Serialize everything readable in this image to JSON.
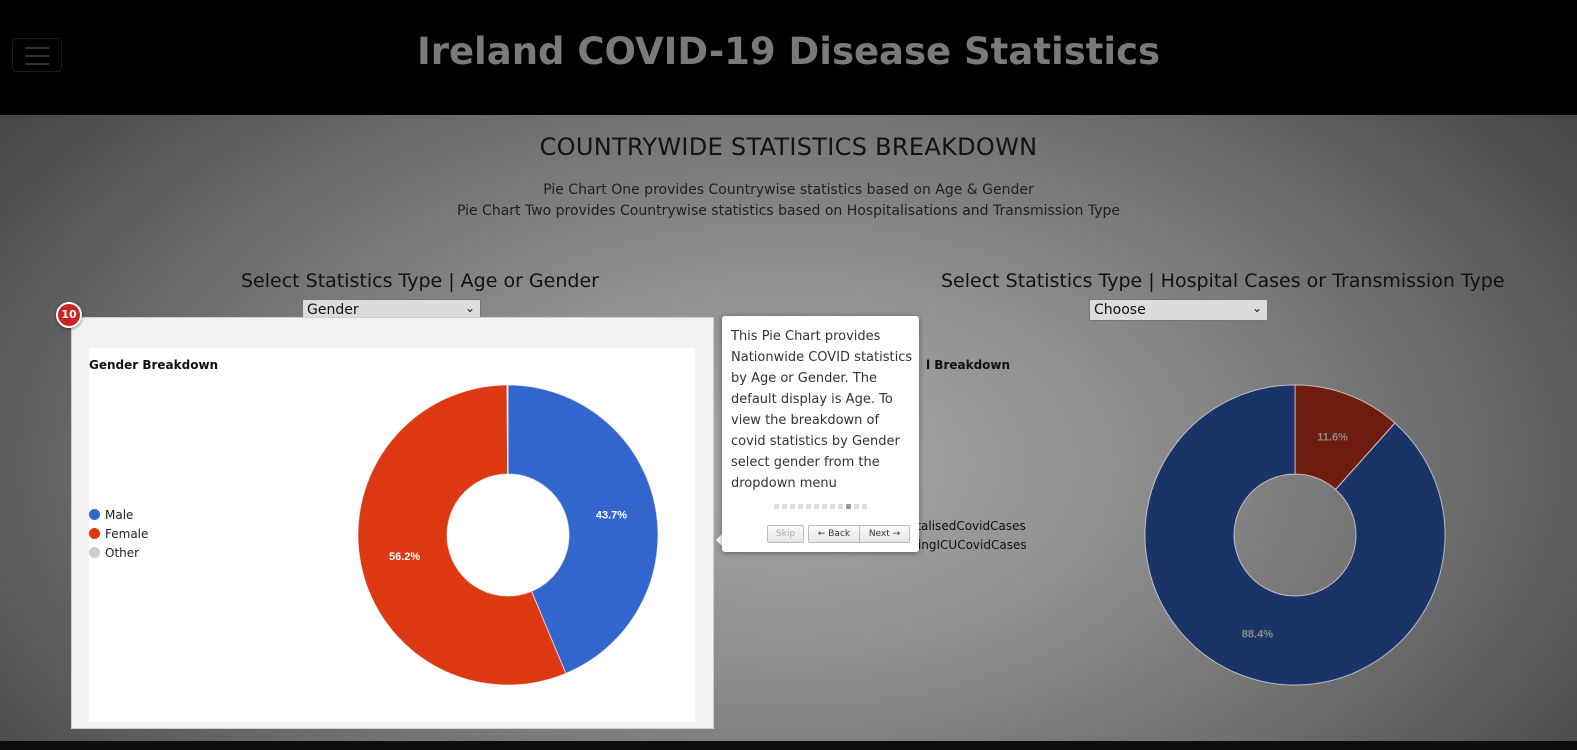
{
  "header": {
    "title": "Ireland COVID-19 Disease Statistics"
  },
  "section": {
    "title": "COUNTRYWIDE STATISTICS BREAKDOWN",
    "description_1": "Pie Chart One provides Countrywise statistics based on Age & Gender",
    "description_2": "Pie Chart Two provides Countrywise statistics based on Hospitalisations and Transmission Type"
  },
  "left_panel": {
    "select_label": "Select Statistics Type | Age or Gender",
    "select_value": "Gender"
  },
  "right_panel": {
    "select_label": "Select Statistics Type | Hospital Cases or Transmission Type",
    "select_value": "Choose",
    "chart_title_fragment": "l Breakdown",
    "legend_fragment_1": "italisedCovidCases",
    "legend_fragment_2": "ringICUCovidCases"
  },
  "tour": {
    "step_number": "10",
    "text": "This Pie Chart provides Nationwide COVID statistics by Age or Gender. The default display is Age. To view the breakdown of covid statistics by Gender select gender from the dropdown menu",
    "total_steps": 12,
    "current_step": 10,
    "skip_label": "Skip",
    "back_label": "← Back",
    "next_label": "Next →"
  },
  "chart_data": [
    {
      "type": "pie",
      "title": "Gender Breakdown",
      "donut": true,
      "categories": [
        "Male",
        "Female",
        "Other"
      ],
      "values": [
        43.7,
        56.2,
        0.1
      ],
      "labels": [
        "43.7%",
        "56.2%",
        ""
      ],
      "colors": [
        "#3366cc",
        "#dc3912",
        "#cccccc"
      ],
      "legend": "left"
    },
    {
      "type": "pie",
      "donut": true,
      "values": [
        11.6,
        88.4
      ],
      "labels": [
        "11.6%",
        "88.4%"
      ],
      "colors": [
        "#6e1c0d",
        "#1b3467"
      ],
      "legend": "left"
    }
  ]
}
